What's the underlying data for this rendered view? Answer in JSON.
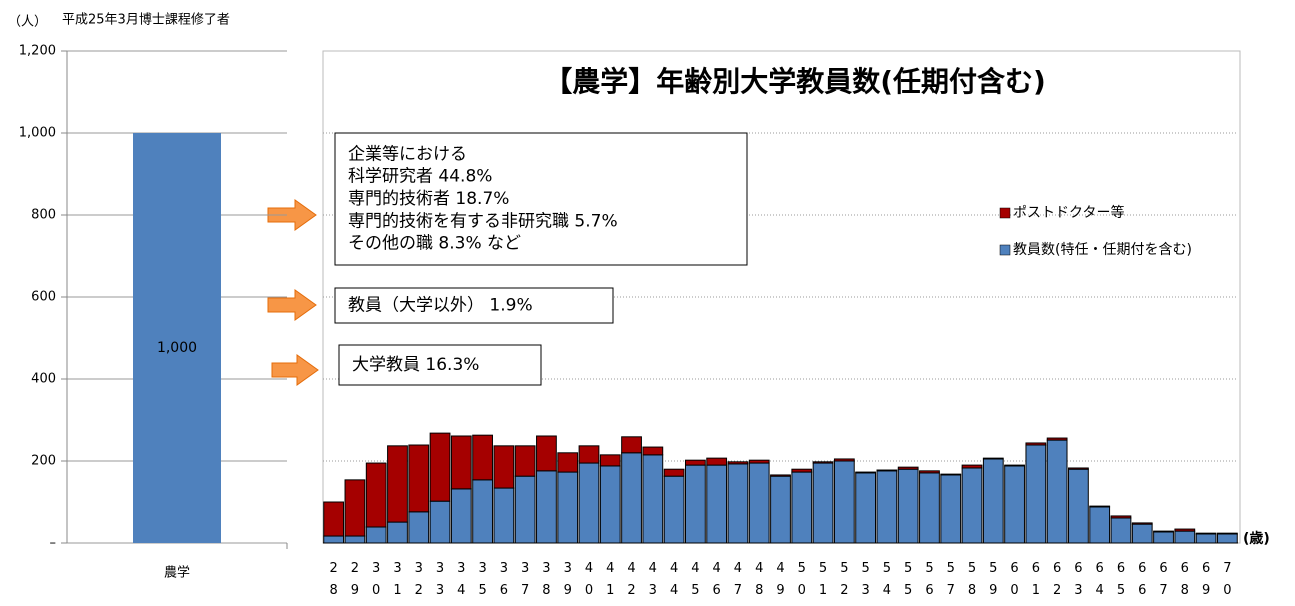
{
  "chart_data": [
    {
      "type": "bar",
      "title": "平成25年3月博士課程修了者",
      "y_label": "（人）",
      "categories": [
        "農学"
      ],
      "values": [
        1000
      ],
      "value_labels": [
        "1,000"
      ],
      "color": "#4F81BD",
      "ylim": [
        0,
        1200
      ],
      "yticks": [
        {
          "value": 0,
          "label": "–"
        },
        200,
        400,
        600,
        800,
        {
          "value": 1000,
          "label": "1,000"
        },
        {
          "value": 1200,
          "label": "1,200"
        }
      ],
      "grid": true
    },
    {
      "type": "stacked_bar",
      "title": "【農学】年齢別大学教員数(任期付含む)",
      "x_label": "(歳)",
      "categories": [
        "28",
        "29",
        "30",
        "31",
        "32",
        "33",
        "34",
        "35",
        "36",
        "37",
        "38",
        "39",
        "40",
        "41",
        "42",
        "43",
        "44",
        "45",
        "46",
        "47",
        "48",
        "49",
        "50",
        "51",
        "52",
        "53",
        "54",
        "55",
        "56",
        "57",
        "58",
        "59",
        "60",
        "61",
        "62",
        "63",
        "64",
        "65",
        "66",
        "67",
        "68",
        "69",
        "70"
      ],
      "series": [
        {
          "name": "教員数(特任・任期付を含む)",
          "color": "#4F81BD",
          "values": [
            17,
            17,
            39,
            51,
            76,
            102,
            132,
            154,
            134,
            163,
            176,
            173,
            195,
            188,
            220,
            215,
            163,
            190,
            190,
            193,
            195,
            163,
            173,
            195,
            200,
            171,
            176,
            180,
            171,
            166,
            183,
            205,
            188,
            239,
            251,
            180,
            88,
            61,
            46,
            27,
            29,
            22,
            22
          ]
        },
        {
          "name": "ポストドクター等",
          "color": "#A50000",
          "values": [
            83,
            137,
            156,
            186,
            163,
            166,
            129,
            109,
            103,
            74,
            85,
            47,
            42,
            27,
            39,
            19,
            17,
            12,
            17,
            5,
            7,
            3,
            7,
            3,
            5,
            2,
            2,
            5,
            5,
            2,
            7,
            2,
            2,
            5,
            5,
            3,
            2,
            5,
            3,
            2,
            5,
            2,
            2
          ]
        }
      ],
      "ylim": [
        0,
        1200
      ],
      "yticks": [
        200,
        400,
        600,
        800,
        1000
      ],
      "grid": true,
      "legend": "right",
      "annotations": [
        {
          "lines": [
            "企業等における",
            "科学研究者 44.8%",
            "専門的技術者 18.7%",
            "専門的技術を有する非研究職 5.7%",
            "その他の職 8.3% など"
          ]
        },
        {
          "lines": [
            "教員（大学以外） 1.9%"
          ]
        },
        {
          "lines": [
            "大学教員 16.3%"
          ]
        }
      ]
    }
  ]
}
